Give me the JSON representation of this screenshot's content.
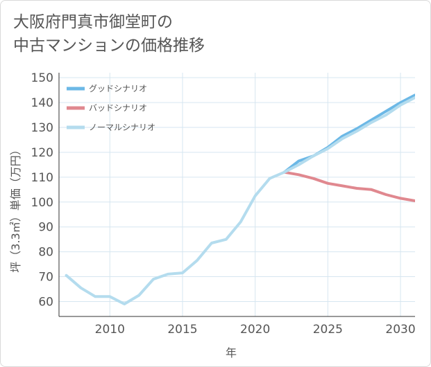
{
  "title": {
    "line1": "大阪府門真市御堂町の",
    "line2": "中古マンションの価格推移"
  },
  "chart_data": {
    "type": "line",
    "xlabel": "年",
    "ylabel": "坪（3.3㎡）単価（万円）",
    "xlim": [
      2006.5,
      2031
    ],
    "ylim": [
      54,
      152
    ],
    "x_ticks": [
      2010,
      2015,
      2020,
      2025,
      2030
    ],
    "y_ticks": [
      60,
      70,
      80,
      90,
      100,
      110,
      120,
      130,
      140,
      150
    ],
    "grid": true,
    "legend_position": "top-left",
    "series": [
      {
        "name": "グッドシナリオ",
        "color": "#6cb8e6",
        "x": [
          2022,
          2023,
          2024,
          2025,
          2026,
          2027,
          2028,
          2029,
          2030,
          2031
        ],
        "y": [
          112,
          116.5,
          118.5,
          122,
          126.5,
          129.5,
          133,
          136.5,
          140,
          143
        ]
      },
      {
        "name": "バッドシナリオ",
        "color": "#e0888f",
        "x": [
          2022,
          2023,
          2024,
          2025,
          2026,
          2027,
          2028,
          2029,
          2030,
          2031
        ],
        "y": [
          112,
          111,
          109.5,
          107.5,
          106.5,
          105.5,
          105,
          103,
          101.5,
          100.5
        ]
      },
      {
        "name": "ノーマルシナリオ",
        "color": "#b4dcee",
        "x": [
          2007,
          2008,
          2009,
          2010,
          2011,
          2012,
          2013,
          2014,
          2015,
          2016,
          2017,
          2018,
          2019,
          2020,
          2021,
          2022,
          2023,
          2024,
          2025,
          2026,
          2027,
          2028,
          2029,
          2030,
          2031
        ],
        "y": [
          70.5,
          65.5,
          62,
          62,
          59,
          62.5,
          69,
          71,
          71.5,
          76.5,
          83.5,
          85,
          92,
          102.5,
          109.5,
          112,
          115,
          118.5,
          121.5,
          125.5,
          128.5,
          132,
          135,
          139,
          142
        ]
      }
    ]
  }
}
